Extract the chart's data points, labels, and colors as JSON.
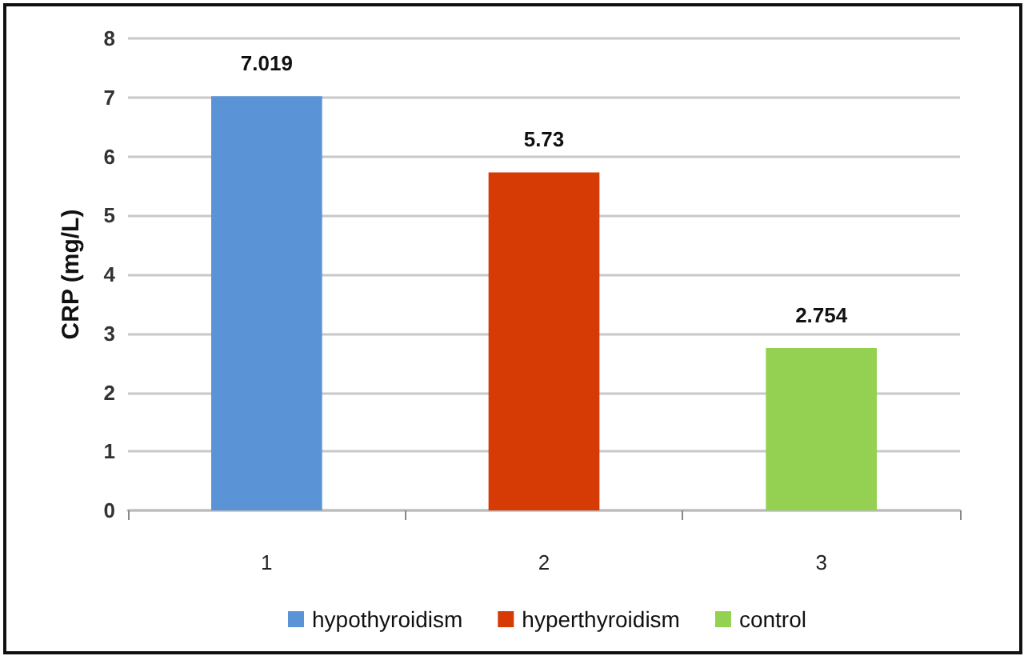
{
  "chart_data": {
    "type": "bar",
    "ylabel": "CRP (mg/L)",
    "categories": [
      "1",
      "2",
      "3"
    ],
    "series": [
      {
        "name": "hypothyroidism",
        "color": "#5b93d7",
        "values": [
          7.019,
          null,
          null
        ]
      },
      {
        "name": "hyperthyroidism",
        "color": "#d63a05",
        "values": [
          null,
          5.73,
          null
        ]
      },
      {
        "name": "control",
        "color": "#94d152",
        "values": [
          null,
          null,
          2.754
        ]
      }
    ],
    "ylim": [
      0,
      8
    ],
    "yticks": [
      0,
      1,
      2,
      3,
      4,
      5,
      6,
      7,
      8
    ],
    "grid": "y",
    "legend": "bottom",
    "data_labels": true
  }
}
